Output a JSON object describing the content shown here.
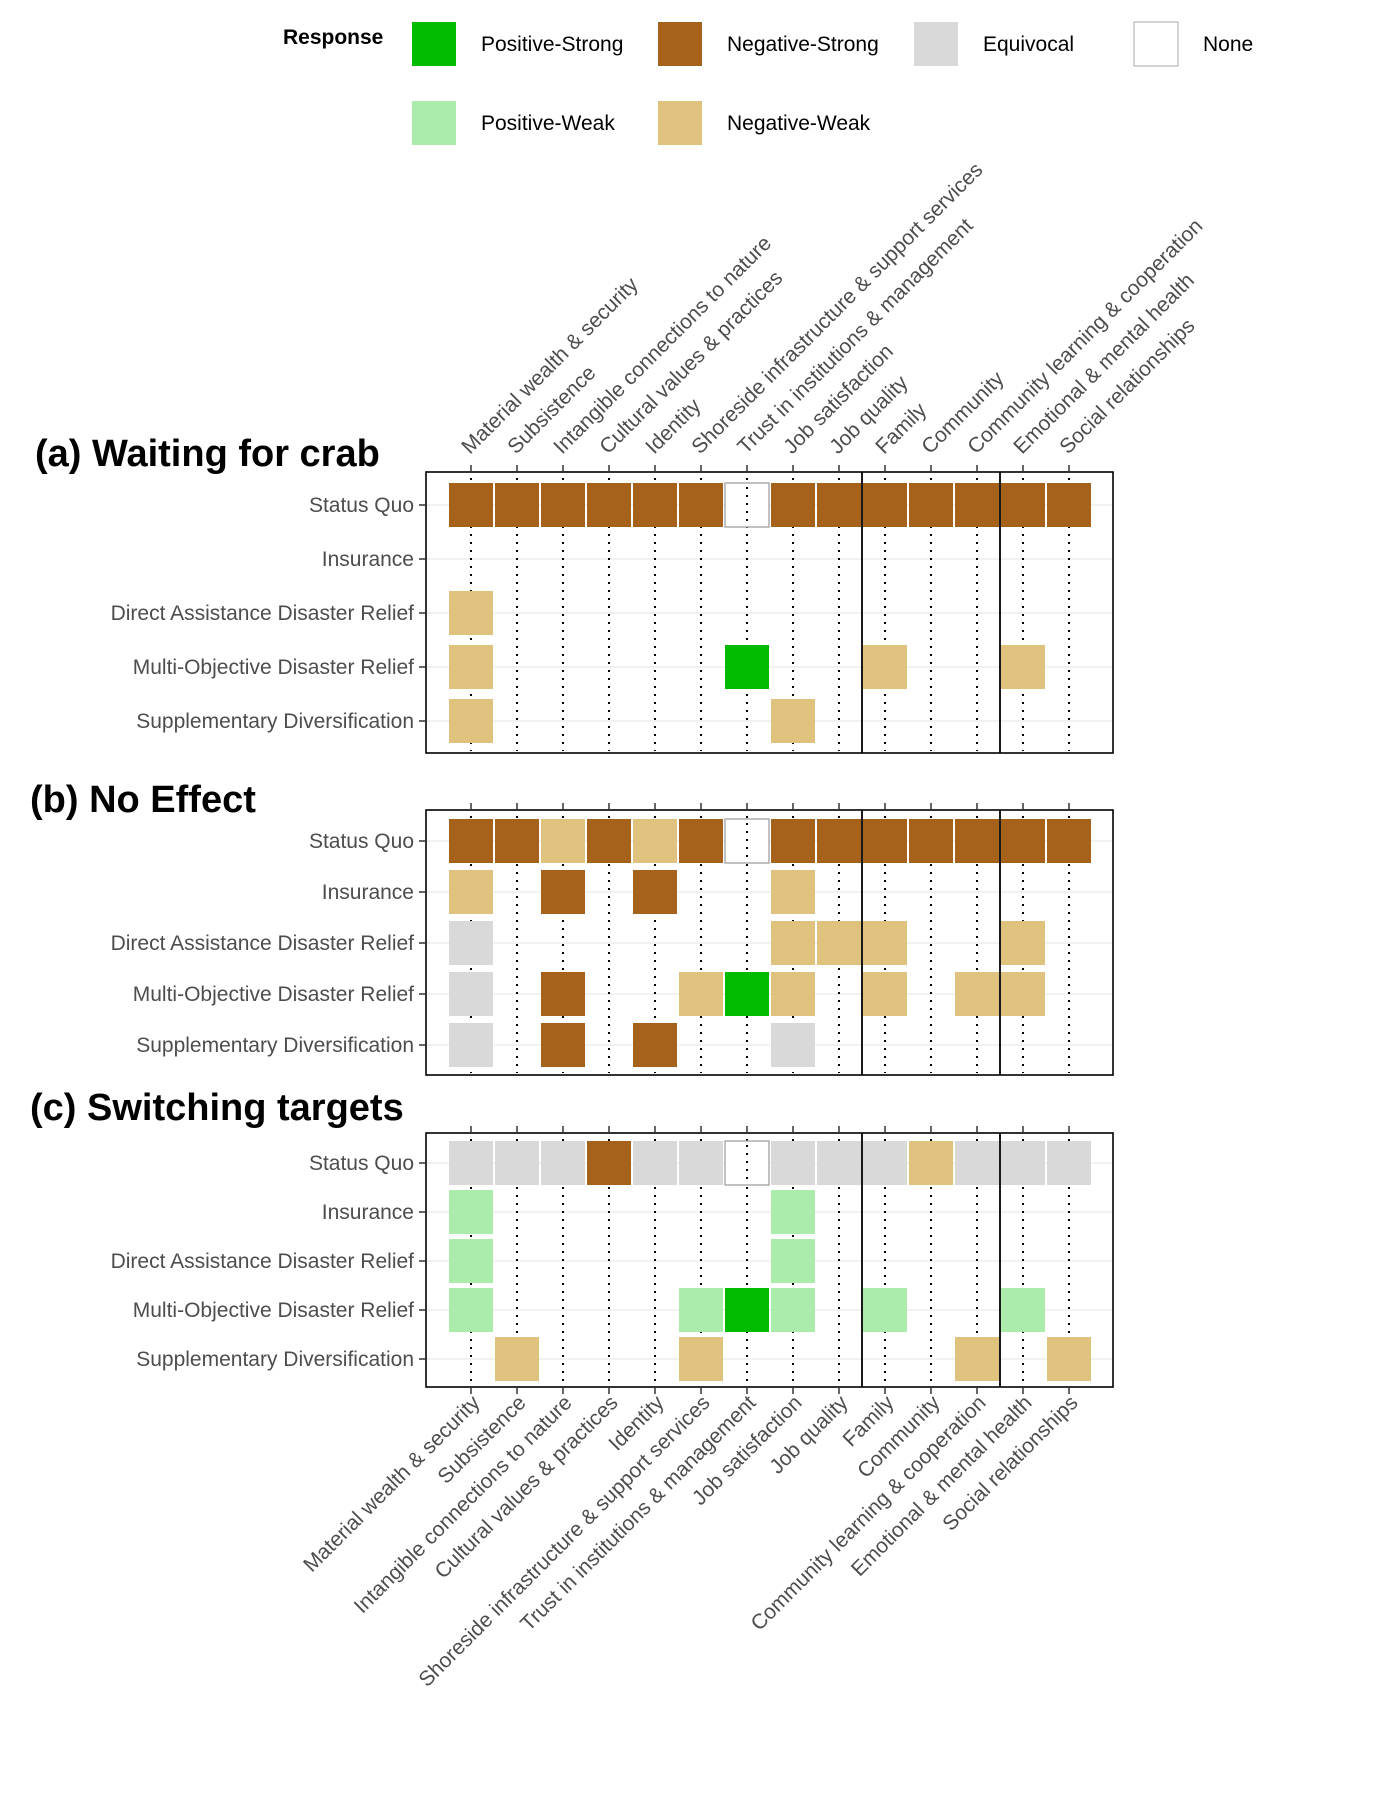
{
  "legend": {
    "title": "Response",
    "items": [
      {
        "key": "PS",
        "label": "Positive-Strong",
        "color": "#00bb00"
      },
      {
        "key": "NS",
        "label": "Negative-Strong",
        "color": "#a6611a"
      },
      {
        "key": "EQ",
        "label": "Equivocal",
        "color": "#d9d9d9"
      },
      {
        "key": "NO",
        "label": "None",
        "color": "#ffffff"
      },
      {
        "key": "PW",
        "label": "Positive-Weak",
        "color": "#abebab"
      },
      {
        "key": "NW",
        "label": "Negative-Weak",
        "color": "#dfc27d"
      }
    ]
  },
  "chart_data": {
    "type": "heatmap",
    "categories": [
      "Material wealth & security",
      "Subsistence",
      "Intangible connections to nature",
      "Cultural values & practices",
      "Identity",
      "Shoreside infrastructure & support services",
      "Trust in institutions & management",
      "Job satisfaction",
      "Job quality",
      "Family",
      "Community",
      "Community learning & cooperation",
      "Emotional & mental health",
      "Social relationships"
    ],
    "rows": [
      "Status Quo",
      "Insurance",
      "Direct Assistance Disaster Relief",
      "Multi-Objective Disaster Relief",
      "Supplementary Diversification"
    ],
    "panels": [
      {
        "title": "(a) Waiting for crab",
        "cells": [
          [
            "NS",
            "NS",
            "NS",
            "NS",
            "NS",
            "NS",
            "NO",
            "NS",
            "NS",
            "NS",
            "NS",
            "NS",
            "NS",
            "NS"
          ],
          [
            "",
            "",
            "",
            "",
            "",
            "",
            "",
            "",
            "",
            "",
            "",
            "",
            "",
            ""
          ],
          [
            "NW",
            "",
            "",
            "",
            "",
            "",
            "",
            "",
            "",
            "",
            "",
            "",
            "",
            ""
          ],
          [
            "NW",
            "",
            "",
            "",
            "",
            "",
            "PS",
            "",
            "",
            "NW",
            "",
            "",
            "NW",
            ""
          ],
          [
            "NW",
            "",
            "",
            "",
            "",
            "",
            "",
            "NW",
            "",
            "",
            "",
            "",
            "",
            ""
          ]
        ]
      },
      {
        "title": "(b) No Effect",
        "cells": [
          [
            "NS",
            "NS",
            "NW",
            "NS",
            "NW",
            "NS",
            "NO",
            "NS",
            "NS",
            "NS",
            "NS",
            "NS",
            "NS",
            "NS"
          ],
          [
            "NW",
            "",
            "NS",
            "",
            "NS",
            "",
            "",
            "NW",
            "",
            "",
            "",
            "",
            "",
            ""
          ],
          [
            "EQ",
            "",
            "",
            "",
            "",
            "",
            "",
            "NW",
            "NW",
            "NW",
            "",
            "",
            "NW",
            ""
          ],
          [
            "EQ",
            "",
            "NS",
            "",
            "",
            "NW",
            "PS",
            "NW",
            "",
            "NW",
            "",
            "NW",
            "NW",
            ""
          ],
          [
            "EQ",
            "",
            "NS",
            "",
            "NS",
            "",
            "",
            "EQ",
            "",
            "",
            "",
            "",
            "",
            ""
          ]
        ]
      },
      {
        "title": "(c) Switching targets",
        "cells": [
          [
            "EQ",
            "EQ",
            "EQ",
            "NS",
            "EQ",
            "EQ",
            "NO",
            "EQ",
            "EQ",
            "EQ",
            "NW",
            "EQ",
            "EQ",
            "EQ"
          ],
          [
            "PW",
            "",
            "",
            "",
            "",
            "",
            "",
            "PW",
            "",
            "",
            "",
            "",
            "",
            ""
          ],
          [
            "PW",
            "",
            "",
            "",
            "",
            "",
            "",
            "PW",
            "",
            "",
            "",
            "",
            "",
            ""
          ],
          [
            "PW",
            "",
            "",
            "",
            "",
            "PW",
            "PS",
            "PW",
            "",
            "PW",
            "",
            "",
            "PW",
            ""
          ],
          [
            "",
            "NW",
            "",
            "",
            "",
            "NW",
            "",
            "",
            "",
            "",
            "",
            "NW",
            "",
            "NW"
          ]
        ]
      }
    ],
    "group_dividers_after": [
      "Job quality",
      "Community learning & cooperation"
    ]
  }
}
